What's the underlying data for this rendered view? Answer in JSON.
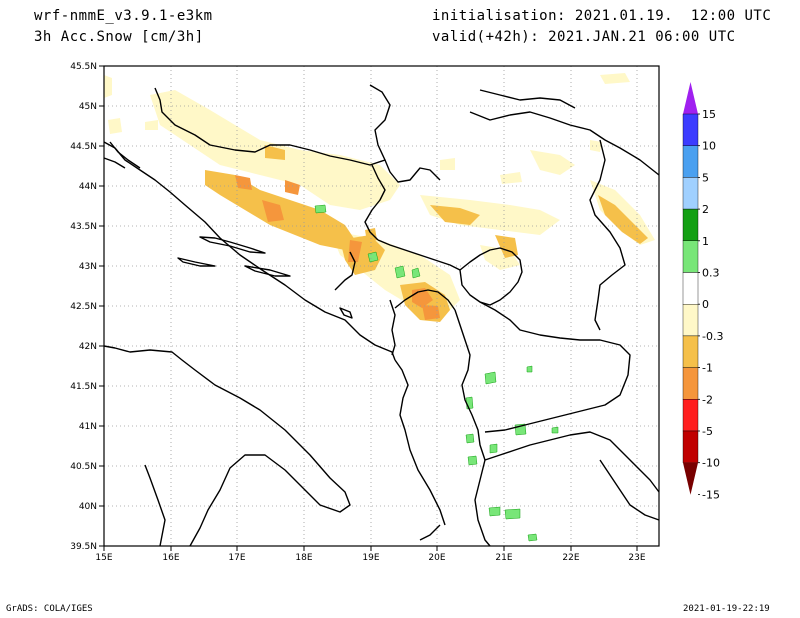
{
  "header": {
    "model": "wrf-nmmE_v3.9.1-e3km",
    "variable": "3h Acc.Snow [cm/3h]",
    "init": "initialisation: 2021.01.19.  12:00 UTC",
    "valid": "valid(+42h): 2021.JAN.21 06:00 UTC"
  },
  "axes": {
    "lat_labels": [
      "45.5N",
      "45N",
      "44.5N",
      "44N",
      "43.5N",
      "43N",
      "42.5N",
      "42N",
      "41.5N",
      "41N",
      "40.5N",
      "40N",
      "39.5N"
    ],
    "lon_labels": [
      "15E",
      "16E",
      "17E",
      "18E",
      "19E",
      "20E",
      "21E",
      "22E",
      "23E"
    ],
    "lat_range": [
      39.5,
      45.5
    ],
    "lon_range": [
      15.0,
      23.3
    ]
  },
  "colorbar": {
    "labels": [
      "15",
      "10",
      "5",
      "2",
      "1",
      "0.3",
      "0",
      "-0.3",
      "-1",
      "-2",
      "-5",
      "-10",
      "-15"
    ],
    "colors": [
      "#a020f0",
      "#3c3cff",
      "#4aa0f0",
      "#a0d0ff",
      "#14a014",
      "#78e678",
      "#ffffff",
      "#fff8c8",
      "#f5c04a",
      "#f5963c",
      "#ff1e1e",
      "#c00000",
      "#780000"
    ]
  },
  "footer": {
    "left": "GrADS: COLA/IGES",
    "right": "2021-01-19-22:19"
  }
}
